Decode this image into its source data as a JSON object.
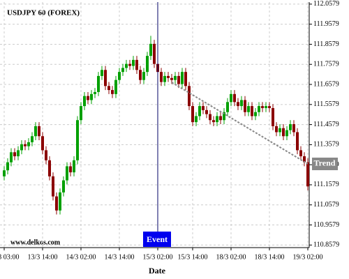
{
  "chart_data": {
    "type": "candlestick",
    "title": "USDJPY 60 (FOREX)",
    "watermark": "www.delkos.com",
    "x_label": "Date",
    "categories": [
      "13/3 03:00",
      null,
      null,
      null,
      null,
      null,
      null,
      null,
      null,
      null,
      null,
      "13/3 14:00",
      null,
      null,
      null,
      null,
      null,
      null,
      null,
      null,
      null,
      null,
      "14/3 02:00",
      null,
      null,
      null,
      null,
      null,
      null,
      null,
      null,
      null,
      null,
      "14/3 14:00",
      null,
      null,
      null,
      null,
      null,
      null,
      null,
      null,
      null,
      null,
      "15/3 02:00",
      null,
      null,
      null,
      null,
      null,
      null,
      null,
      null,
      null,
      "15/3 14:00",
      null,
      null,
      null,
      null,
      null,
      null,
      null,
      null,
      null,
      null,
      "18/3 02:00",
      null,
      null,
      null,
      null,
      null,
      null,
      null,
      null,
      null,
      null,
      "18/3 14:00",
      null,
      null,
      null,
      null,
      null,
      null,
      null,
      null,
      null,
      null,
      "19/3 02:00"
    ],
    "open": [
      111.2,
      111.23,
      111.27,
      111.32,
      111.3,
      111.33,
      111.36,
      111.35,
      111.37,
      111.4,
      111.45,
      111.4,
      111.33,
      111.28,
      111.2,
      111.1,
      111.03,
      111.12,
      111.18,
      111.25,
      111.22,
      111.28,
      111.48,
      111.55,
      111.6,
      111.58,
      111.61,
      111.62,
      111.7,
      111.73,
      111.65,
      111.63,
      111.61,
      111.68,
      111.72,
      111.74,
      111.76,
      111.75,
      111.78,
      111.73,
      111.68,
      111.72,
      111.8,
      111.86,
      111.76,
      111.72,
      111.67,
      111.7,
      111.69,
      111.68,
      111.7,
      111.66,
      111.72,
      111.65,
      111.55,
      111.47,
      111.5,
      111.55,
      111.53,
      111.51,
      111.48,
      111.47,
      111.5,
      111.48,
      111.52,
      111.57,
      111.61,
      111.57,
      111.55,
      111.58,
      111.52,
      111.55,
      111.5,
      111.52,
      111.55,
      111.54,
      111.55,
      111.54,
      111.45,
      111.42,
      111.44,
      111.4,
      111.43,
      111.46,
      111.42,
      111.33,
      111.3,
      111.27
    ],
    "high": [
      111.25,
      111.29,
      111.34,
      111.34,
      111.35,
      111.38,
      111.38,
      111.39,
      111.42,
      111.47,
      111.47,
      111.42,
      111.35,
      111.3,
      111.22,
      111.12,
      111.14,
      111.2,
      111.27,
      111.27,
      111.3,
      111.5,
      111.57,
      111.62,
      111.62,
      111.63,
      111.64,
      111.72,
      111.75,
      111.75,
      111.67,
      111.65,
      111.7,
      111.74,
      111.76,
      111.78,
      111.78,
      111.8,
      111.8,
      111.75,
      111.74,
      111.82,
      111.9,
      111.88,
      111.78,
      111.74,
      111.72,
      111.72,
      111.71,
      111.72,
      111.72,
      111.74,
      111.74,
      111.67,
      111.57,
      111.52,
      111.57,
      111.57,
      111.55,
      111.53,
      111.5,
      111.52,
      111.52,
      111.54,
      111.59,
      111.63,
      111.63,
      111.59,
      111.6,
      111.6,
      111.57,
      111.57,
      111.54,
      111.57,
      111.57,
      111.57,
      111.57,
      111.56,
      111.47,
      111.46,
      111.46,
      111.45,
      111.48,
      111.48,
      111.44,
      111.35,
      111.32,
      111.29
    ],
    "low": [
      111.18,
      111.21,
      111.25,
      111.28,
      111.28,
      111.31,
      111.33,
      111.33,
      111.35,
      111.38,
      111.38,
      111.31,
      111.26,
      111.18,
      111.08,
      111.01,
      111.01,
      111.1,
      111.16,
      111.2,
      111.2,
      111.26,
      111.46,
      111.53,
      111.56,
      111.56,
      111.59,
      111.6,
      111.68,
      111.63,
      111.61,
      111.59,
      111.59,
      111.66,
      111.7,
      111.72,
      111.73,
      111.73,
      111.71,
      111.66,
      111.66,
      111.7,
      111.78,
      111.74,
      111.7,
      111.65,
      111.65,
      111.67,
      111.66,
      111.66,
      111.64,
      111.64,
      111.63,
      111.53,
      111.45,
      111.45,
      111.48,
      111.51,
      111.49,
      111.46,
      111.45,
      111.45,
      111.46,
      111.46,
      111.5,
      111.55,
      111.55,
      111.53,
      111.53,
      111.5,
      111.5,
      111.48,
      111.48,
      111.5,
      111.52,
      111.52,
      111.52,
      111.43,
      111.4,
      111.4,
      111.38,
      111.38,
      111.41,
      111.4,
      111.31,
      111.28,
      111.25,
      111.13
    ],
    "close": [
      111.23,
      111.27,
      111.32,
      111.3,
      111.33,
      111.36,
      111.35,
      111.37,
      111.4,
      111.45,
      111.4,
      111.33,
      111.28,
      111.2,
      111.1,
      111.03,
      111.12,
      111.18,
      111.25,
      111.22,
      111.28,
      111.48,
      111.55,
      111.6,
      111.58,
      111.61,
      111.62,
      111.7,
      111.73,
      111.65,
      111.63,
      111.61,
      111.68,
      111.72,
      111.74,
      111.76,
      111.75,
      111.78,
      111.73,
      111.68,
      111.72,
      111.8,
      111.86,
      111.76,
      111.72,
      111.67,
      111.7,
      111.69,
      111.68,
      111.7,
      111.66,
      111.72,
      111.65,
      111.55,
      111.47,
      111.5,
      111.55,
      111.53,
      111.51,
      111.48,
      111.47,
      111.5,
      111.48,
      111.52,
      111.57,
      111.61,
      111.57,
      111.55,
      111.58,
      111.52,
      111.55,
      111.5,
      111.52,
      111.55,
      111.54,
      111.55,
      111.54,
      111.45,
      111.42,
      111.44,
      111.4,
      111.43,
      111.46,
      111.42,
      111.33,
      111.3,
      111.27,
      111.15
    ],
    "up_color": "#00a000",
    "down_color": "#8b0000",
    "ylim": [
      110.845,
      112.068
    ],
    "yticks": [
      112.0579,
      111.9579,
      111.8579,
      111.7579,
      111.6579,
      111.5579,
      111.4579,
      111.3579,
      111.2579,
      111.1579,
      111.0579,
      110.9579,
      110.8579
    ],
    "grid": true,
    "event": {
      "label": "Event",
      "index": 44,
      "color": "#0000ee"
    },
    "trend": {
      "label": "Trend",
      "start": [
        48,
        111.668
      ],
      "end": [
        87,
        111.262
      ],
      "color": "#888888"
    }
  }
}
